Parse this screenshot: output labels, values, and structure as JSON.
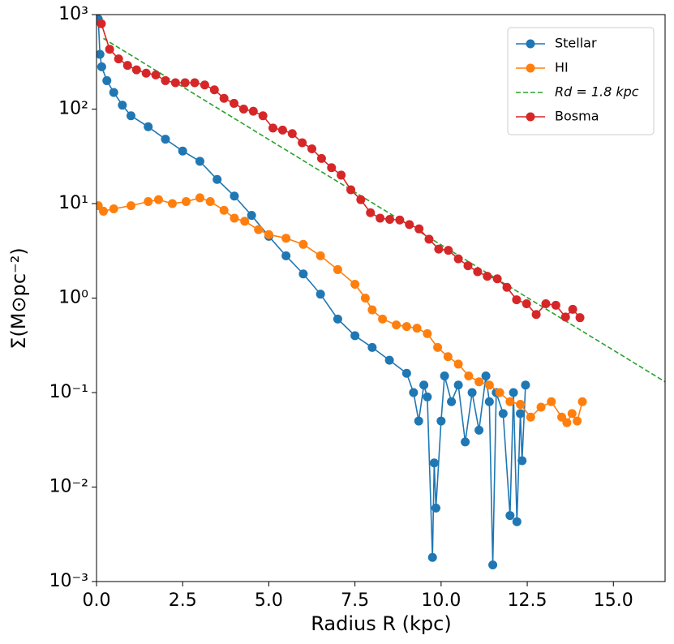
{
  "chart_data": {
    "type": "line",
    "xlabel": "Radius R (kpc)",
    "ylabel": "Σ(M⊙pc⁻²)",
    "yscale": "log",
    "xlim": [
      0,
      16.5
    ],
    "ylim": [
      0.001,
      1000
    ],
    "xticks": [
      {
        "value": 0,
        "label": "0.0"
      },
      2.5,
      {
        "value": 5,
        "label": "5.0"
      },
      7.5,
      {
        "value": 10,
        "label": "10.0"
      },
      12.5,
      {
        "value": 15,
        "label": "15.0"
      }
    ],
    "yticks": [
      {
        "value": 0.001,
        "label": "10⁻³"
      },
      {
        "value": 0.01,
        "label": "10⁻²"
      },
      {
        "value": 0.1,
        "label": "10⁻¹"
      },
      {
        "value": 1,
        "label": "10⁰"
      },
      {
        "value": 10,
        "label": "10¹"
      },
      {
        "value": 100,
        "label": "10²"
      },
      {
        "value": 1000,
        "label": "10³"
      }
    ],
    "legend": "upper right",
    "series": [
      {
        "name": "Stellar",
        "color": "#1f77b4",
        "marker": true,
        "x": [
          0.05,
          0.1,
          0.15,
          0.3,
          0.5,
          0.75,
          1,
          1.5,
          2,
          2.5,
          3,
          3.5,
          4,
          4.5,
          5,
          5.5,
          6,
          6.5,
          7,
          7.5,
          8,
          8.5,
          9,
          9.2,
          9.35,
          9.5,
          9.6,
          9.75,
          9.8,
          9.85,
          10.0,
          10.1,
          10.3,
          10.5,
          10.7,
          10.9,
          11.1,
          11.3,
          11.4,
          11.5,
          11.6,
          11.8,
          12.0,
          12.1,
          12.2,
          12.3,
          12.35,
          12.45
        ],
        "values": [
          900,
          380,
          280,
          200,
          150,
          110,
          85,
          65,
          48,
          36,
          28,
          18,
          12,
          7.5,
          4.5,
          2.8,
          1.8,
          1.1,
          0.6,
          0.4,
          0.3,
          0.22,
          0.16,
          0.1,
          0.05,
          0.12,
          0.09,
          0.0018,
          0.018,
          0.006,
          0.05,
          0.15,
          0.08,
          0.12,
          0.03,
          0.1,
          0.04,
          0.15,
          0.08,
          0.0015,
          0.1,
          0.06,
          0.005,
          0.1,
          0.0043,
          0.06,
          0.019,
          0.12
        ]
      },
      {
        "name": "HI",
        "color": "#ff7f0e",
        "marker": true,
        "x": [
          0.05,
          0.2,
          0.5,
          1,
          1.5,
          1.8,
          2.2,
          2.6,
          3,
          3.3,
          3.7,
          4,
          4.3,
          4.7,
          5,
          5.5,
          6,
          6.5,
          7,
          7.5,
          7.8,
          8,
          8.3,
          8.7,
          9,
          9.3,
          9.6,
          9.9,
          10.2,
          10.5,
          10.8,
          11.1,
          11.4,
          11.7,
          12,
          12.3,
          12.6,
          12.9,
          13.2,
          13.5,
          13.65,
          13.8,
          13.95,
          14.1
        ],
        "values": [
          9.5,
          8.3,
          8.8,
          9.5,
          10.5,
          11,
          10,
          10.5,
          11.5,
          10.5,
          8.5,
          7,
          6.5,
          5.3,
          4.7,
          4.3,
          3.7,
          2.8,
          2.0,
          1.4,
          1.0,
          0.75,
          0.6,
          0.52,
          0.5,
          0.48,
          0.42,
          0.3,
          0.24,
          0.2,
          0.15,
          0.13,
          0.12,
          0.1,
          0.08,
          0.075,
          0.055,
          0.07,
          0.08,
          0.055,
          0.048,
          0.06,
          0.05,
          0.08
        ]
      },
      {
        "name": "Rd = 1.8 kpc",
        "color": "#2ca02c",
        "marker": false,
        "dashed": true,
        "x": [
          0.2,
          16.5
        ],
        "values": [
          560,
          0.13
        ]
      },
      {
        "name": "Bosma",
        "color": "#d62728",
        "marker": true,
        "x": [
          0.14,
          0.38,
          0.64,
          0.9,
          1.16,
          1.44,
          1.72,
          2.0,
          2.29,
          2.57,
          2.85,
          3.14,
          3.42,
          3.7,
          3.99,
          4.27,
          4.55,
          4.83,
          5.12,
          5.4,
          5.68,
          5.97,
          6.25,
          6.53,
          6.82,
          7.1,
          7.38,
          7.67,
          7.95,
          8.23,
          8.51,
          8.8,
          9.08,
          9.36,
          9.65,
          9.93,
          10.21,
          10.5,
          10.78,
          11.06,
          11.34,
          11.63,
          11.91,
          12.19,
          12.48,
          12.76,
          13.04,
          13.33,
          13.61,
          13.82,
          14.03
        ],
        "values": [
          800,
          430,
          340,
          290,
          260,
          240,
          230,
          200,
          190,
          190,
          190,
          180,
          160,
          130,
          115,
          100,
          95,
          85,
          63,
          60,
          55,
          44,
          38,
          30,
          24,
          20,
          14,
          11,
          8,
          7,
          6.8,
          6.7,
          6,
          5.4,
          4.2,
          3.3,
          3.2,
          2.6,
          2.2,
          1.9,
          1.7,
          1.6,
          1.3,
          0.96,
          0.87,
          0.67,
          0.87,
          0.84,
          0.63,
          0.76,
          0.62
        ]
      }
    ]
  }
}
